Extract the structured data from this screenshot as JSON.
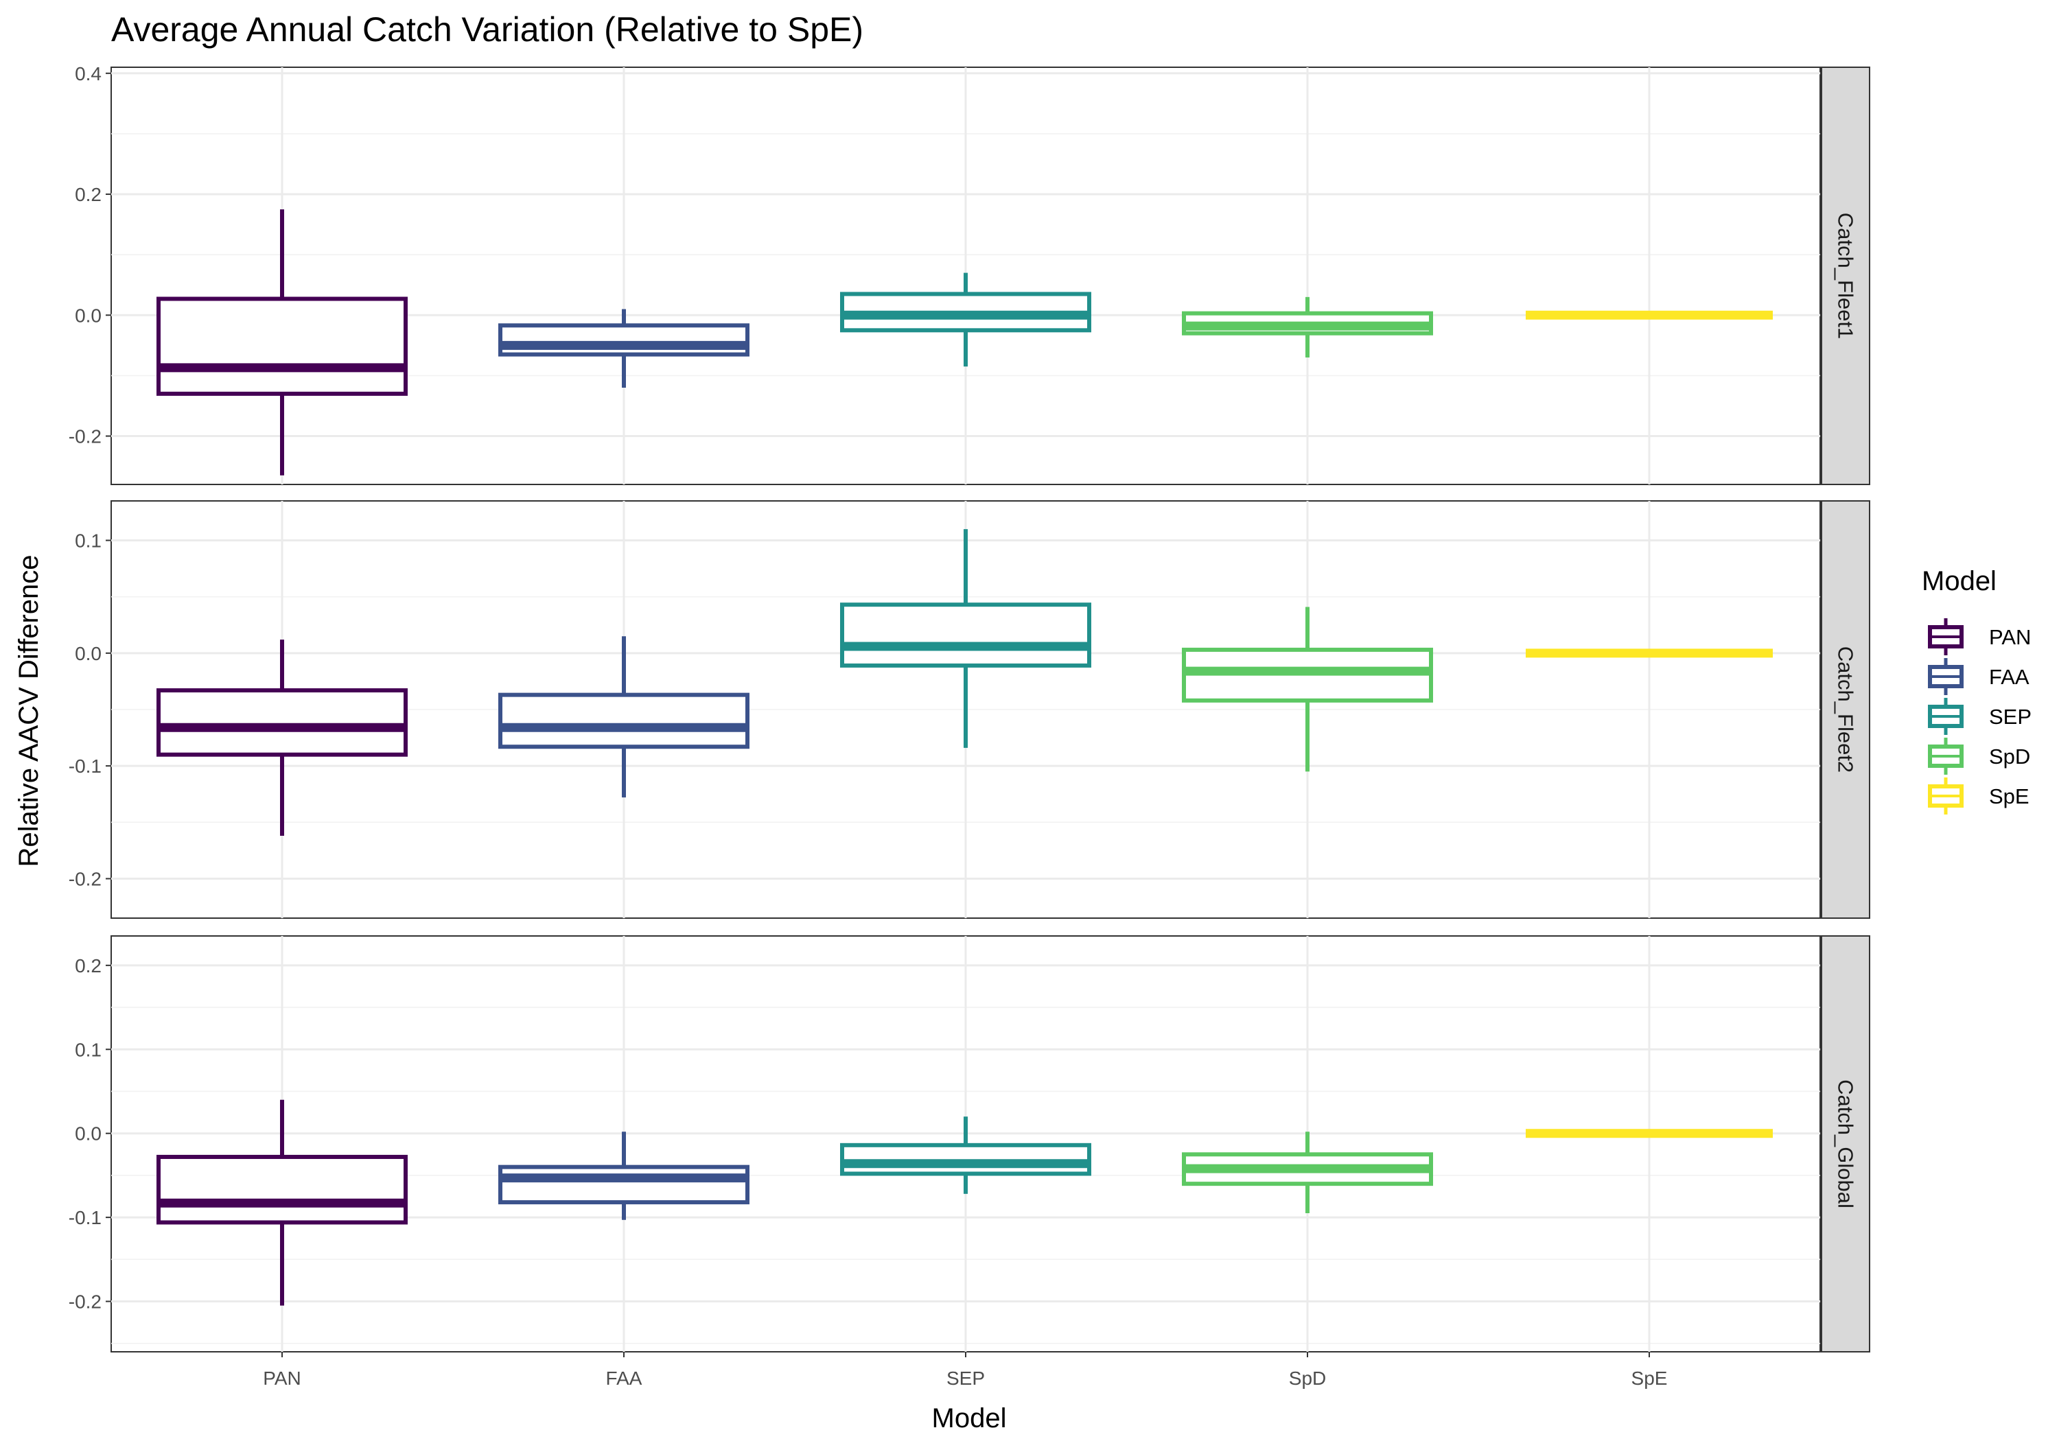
{
  "chart_data": {
    "type": "boxplot",
    "title": "Average Annual Catch Variation (Relative to SpE)",
    "xlabel": "Model",
    "ylabel": "Relative AACV Difference",
    "categories": [
      "PAN",
      "FAA",
      "SEP",
      "SpD",
      "SpE"
    ],
    "colors": {
      "PAN": "#440154",
      "FAA": "#3B528B",
      "SEP": "#21908C",
      "SpD": "#5DC863",
      "SpE": "#FDE725"
    },
    "legend": {
      "title": "Model",
      "position": "right",
      "items": [
        "PAN",
        "FAA",
        "SEP",
        "SpD",
        "SpE"
      ]
    },
    "grid": true,
    "facets": [
      {
        "label": "Catch_Fleet1",
        "ylim": [
          -0.28,
          0.41
        ],
        "yticks": [
          -0.2,
          0.0,
          0.2,
          0.4
        ],
        "ytick_labels": [
          "-0.2",
          "0.0",
          "0.2",
          "0.4"
        ],
        "boxes": [
          {
            "model": "PAN",
            "min": -0.265,
            "q1": -0.13,
            "median": -0.087,
            "q3": 0.027,
            "max": 0.175
          },
          {
            "model": "FAA",
            "min": -0.12,
            "q1": -0.065,
            "median": -0.05,
            "q3": -0.017,
            "max": 0.01
          },
          {
            "model": "SEP",
            "min": -0.085,
            "q1": -0.025,
            "median": 0.0,
            "q3": 0.035,
            "max": 0.07
          },
          {
            "model": "SpD",
            "min": -0.07,
            "q1": -0.03,
            "median": -0.018,
            "q3": 0.003,
            "max": 0.03
          },
          {
            "model": "SpE",
            "min": 0.0,
            "q1": 0.0,
            "median": 0.0,
            "q3": 0.0,
            "max": 0.0
          }
        ]
      },
      {
        "label": "Catch_Fleet2",
        "ylim": [
          -0.235,
          0.135
        ],
        "yticks": [
          -0.2,
          -0.1,
          0.0,
          0.1
        ],
        "ytick_labels": [
          "-0.2",
          "-0.1",
          "0.0",
          "0.1"
        ],
        "boxes": [
          {
            "model": "PAN",
            "min": -0.162,
            "q1": -0.09,
            "median": -0.066,
            "q3": -0.033,
            "max": 0.012
          },
          {
            "model": "FAA",
            "min": -0.128,
            "q1": -0.083,
            "median": -0.066,
            "q3": -0.037,
            "max": 0.015
          },
          {
            "model": "SEP",
            "min": -0.084,
            "q1": -0.011,
            "median": 0.006,
            "q3": 0.043,
            "max": 0.11
          },
          {
            "model": "SpD",
            "min": -0.105,
            "q1": -0.042,
            "median": -0.016,
            "q3": 0.003,
            "max": 0.041
          },
          {
            "model": "SpE",
            "min": 0.0,
            "q1": 0.0,
            "median": 0.0,
            "q3": 0.0,
            "max": 0.0
          }
        ]
      },
      {
        "label": "Catch_Global",
        "ylim": [
          -0.26,
          0.235
        ],
        "yticks": [
          -0.2,
          -0.1,
          0.0,
          0.1,
          0.2
        ],
        "ytick_labels": [
          "-0.2",
          "-0.1",
          "0.0",
          "0.1",
          "0.2"
        ],
        "boxes": [
          {
            "model": "PAN",
            "min": -0.205,
            "q1": -0.106,
            "median": -0.083,
            "q3": -0.028,
            "max": 0.04
          },
          {
            "model": "FAA",
            "min": -0.103,
            "q1": -0.082,
            "median": -0.053,
            "q3": -0.04,
            "max": 0.002
          },
          {
            "model": "SEP",
            "min": -0.072,
            "q1": -0.048,
            "median": -0.036,
            "q3": -0.014,
            "max": 0.02
          },
          {
            "model": "SpD",
            "min": -0.095,
            "q1": -0.06,
            "median": -0.042,
            "q3": -0.025,
            "max": 0.002
          },
          {
            "model": "SpE",
            "min": 0.0,
            "q1": 0.0,
            "median": 0.0,
            "q3": 0.0,
            "max": 0.0
          }
        ]
      }
    ]
  }
}
